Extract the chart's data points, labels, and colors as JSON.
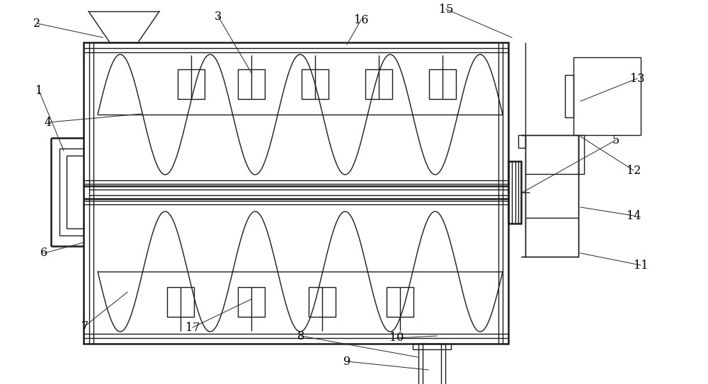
{
  "bg_color": "#ffffff",
  "line_color": "#1a1a1a",
  "lw": 1.0,
  "tlw": 1.8,
  "fig_width": 10.0,
  "fig_height": 5.43
}
